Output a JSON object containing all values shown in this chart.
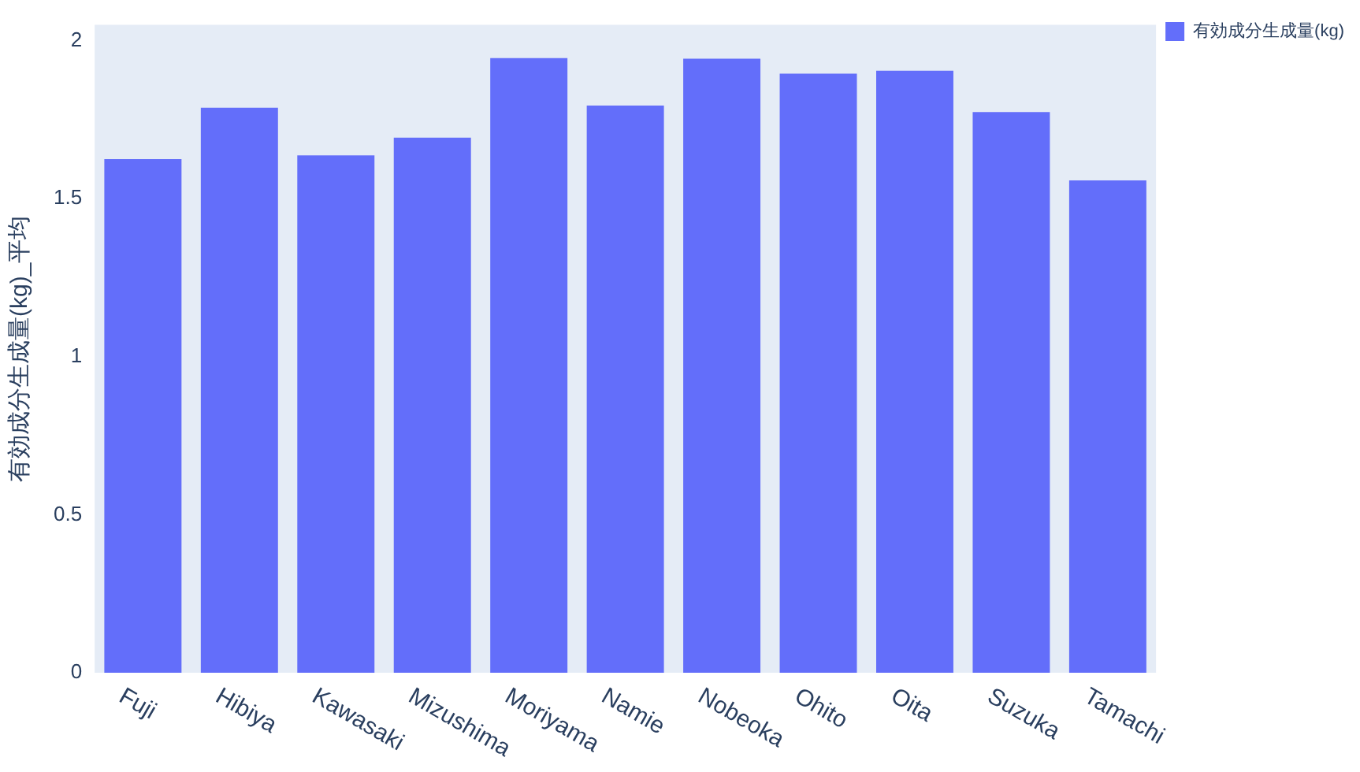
{
  "chart_data": {
    "type": "bar",
    "ylabel": "有効成分生成量(kg)_平均",
    "categories": [
      "Fuji",
      "Hibiya",
      "Kawasaki",
      "Mizushima",
      "Moriyama",
      "Namie",
      "Nobeoka",
      "Ohito",
      "Oita",
      "Suzuka",
      "Tamachi"
    ],
    "series": [
      {
        "name": "有効成分生成量(kg)",
        "color": "#636efa",
        "values": [
          1.625,
          1.788,
          1.637,
          1.693,
          1.945,
          1.795,
          1.943,
          1.896,
          1.905,
          1.774,
          1.558
        ]
      }
    ],
    "ylim": [
      0,
      2.05
    ],
    "yticks": [
      0,
      0.5,
      1,
      1.5,
      2
    ],
    "grid": false,
    "legend": "top right"
  }
}
